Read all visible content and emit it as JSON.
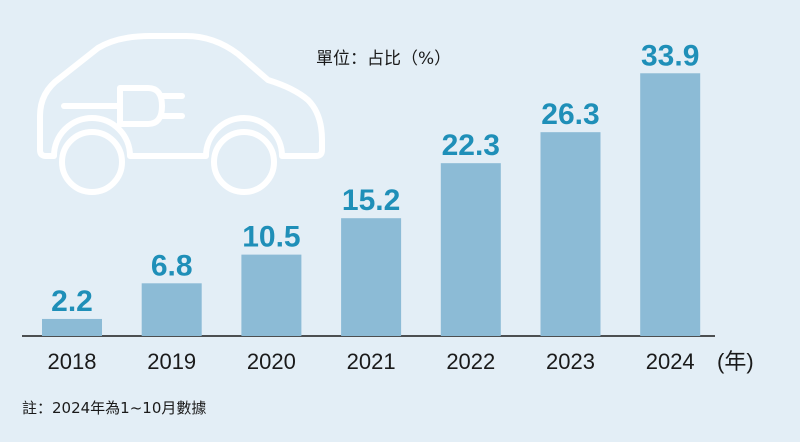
{
  "chart_data": {
    "type": "bar",
    "categories": [
      "2018",
      "2019",
      "2020",
      "2021",
      "2022",
      "2023",
      "2024"
    ],
    "values": [
      2.2,
      6.8,
      10.5,
      15.2,
      22.3,
      26.3,
      33.9
    ],
    "value_labels": [
      "2.2",
      "6.8",
      "10.5",
      "15.2",
      "22.3",
      "26.3",
      "33.9"
    ],
    "unit_label": "單位：占比（%）",
    "x_unit": "(年)",
    "ylim": [
      0,
      35
    ],
    "grid": false,
    "legend": "none"
  },
  "note": "註：2024年為1~10月數據",
  "colors": {
    "background": "#e3eef6",
    "bar": "#8cbbd6",
    "value_text": "#1f8fb8",
    "axis": "#1a1a1a",
    "car_outline": "#ffffff"
  },
  "icons": [
    "electric-car-icon",
    "plug-icon"
  ]
}
